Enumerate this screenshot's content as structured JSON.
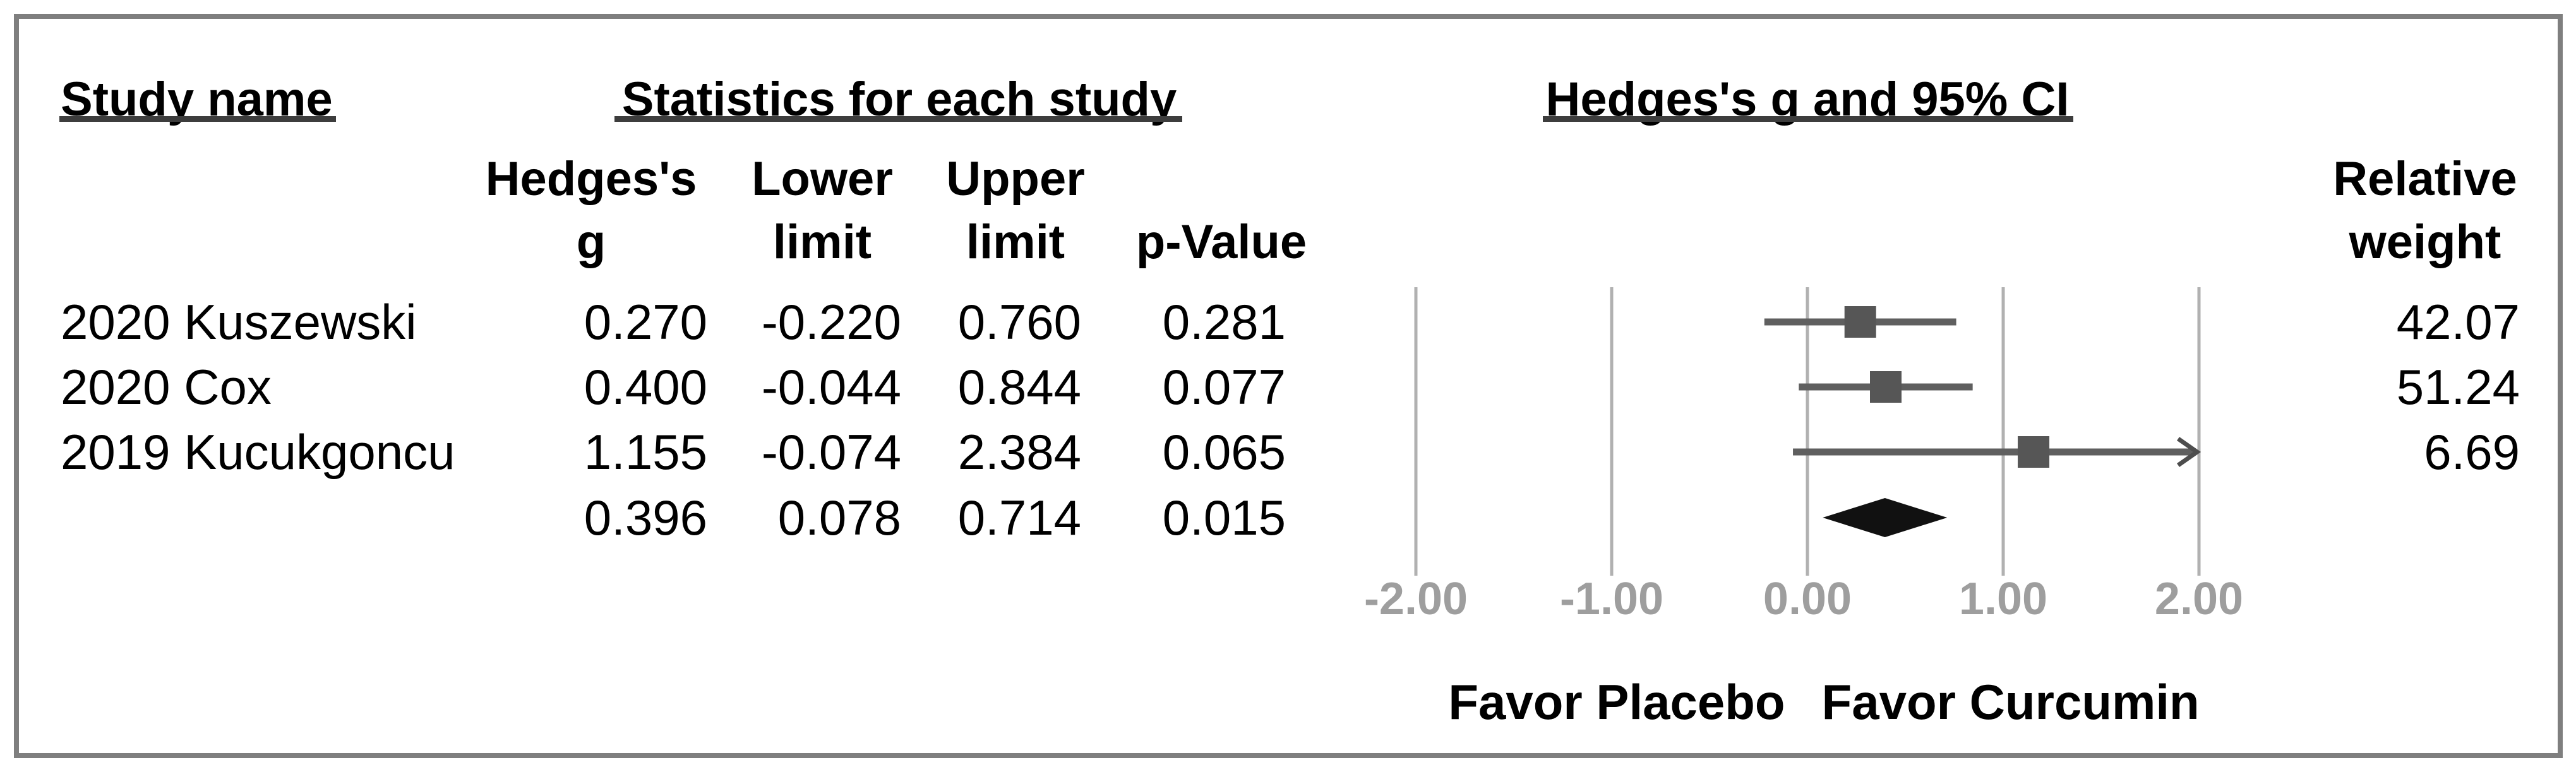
{
  "headers": {
    "study_name": "Study name",
    "statistics": "Statistics for each study",
    "plot_title": "Hedges's g and 95% CI",
    "columns": {
      "hedges_l1": "Hedges's",
      "hedges_l2": "g",
      "lower_l1": "Lower",
      "lower_l2": "limit",
      "upper_l1": "Upper",
      "upper_l2": "limit",
      "p_value": "p-Value",
      "relative_l1": "Relative",
      "relative_l2": "weight"
    }
  },
  "rows": [
    {
      "name": "2020 Kuszewski",
      "g": "0.270",
      "lower": "-0.220",
      "upper": "0.760",
      "p": "0.281",
      "weight": "42.07"
    },
    {
      "name": "2020 Cox",
      "g": "0.400",
      "lower": "-0.044",
      "upper": "0.844",
      "p": "0.077",
      "weight": "51.24"
    },
    {
      "name": "2019 Kucukgoncu",
      "g": "1.155",
      "lower": "-0.074",
      "upper": "2.384",
      "p": "0.065",
      "weight": "6.69"
    }
  ],
  "summary": {
    "g": "0.396",
    "lower": "0.078",
    "upper": "0.714",
    "p": "0.015"
  },
  "axis": {
    "tick_labels": [
      "-2.00",
      "-1.00",
      "0.00",
      "1.00",
      "2.00"
    ],
    "favor_left": "Favor Placebo",
    "favor_right": "Favor Curcumin"
  },
  "chart_data": {
    "type": "forest",
    "effect_measure": "Hedges's g",
    "title": "Hedges's g and 95% CI",
    "studies": [
      {
        "label": "2020 Kuszewski",
        "g": 0.27,
        "lower": -0.22,
        "upper": 0.76,
        "p": 0.281,
        "relative_weight": 42.07
      },
      {
        "label": "2020 Cox",
        "g": 0.4,
        "lower": -0.044,
        "upper": 0.844,
        "p": 0.077,
        "relative_weight": 51.24
      },
      {
        "label": "2019 Kucukgoncu",
        "g": 1.155,
        "lower": -0.074,
        "upper": 2.384,
        "p": 0.065,
        "relative_weight": 6.69
      }
    ],
    "summary": {
      "g": 0.396,
      "lower": 0.078,
      "upper": 0.714,
      "p": 0.015
    },
    "xlim": [
      -2,
      2
    ],
    "ticks": [
      -2,
      -1,
      0,
      1,
      2
    ],
    "xlabel_left": "Favor Placebo",
    "xlabel_right": "Favor Curcumin",
    "grid": true,
    "colors": {
      "ci_line": "#5f5f5f",
      "square": "#565656",
      "diamond": "#111111",
      "gridline": "#b1b1b1",
      "tick_label": "#9e9e9e",
      "arrow": "#4d4d4d",
      "frame": "#7f7f7f",
      "underline": "#3d3d3d"
    }
  }
}
